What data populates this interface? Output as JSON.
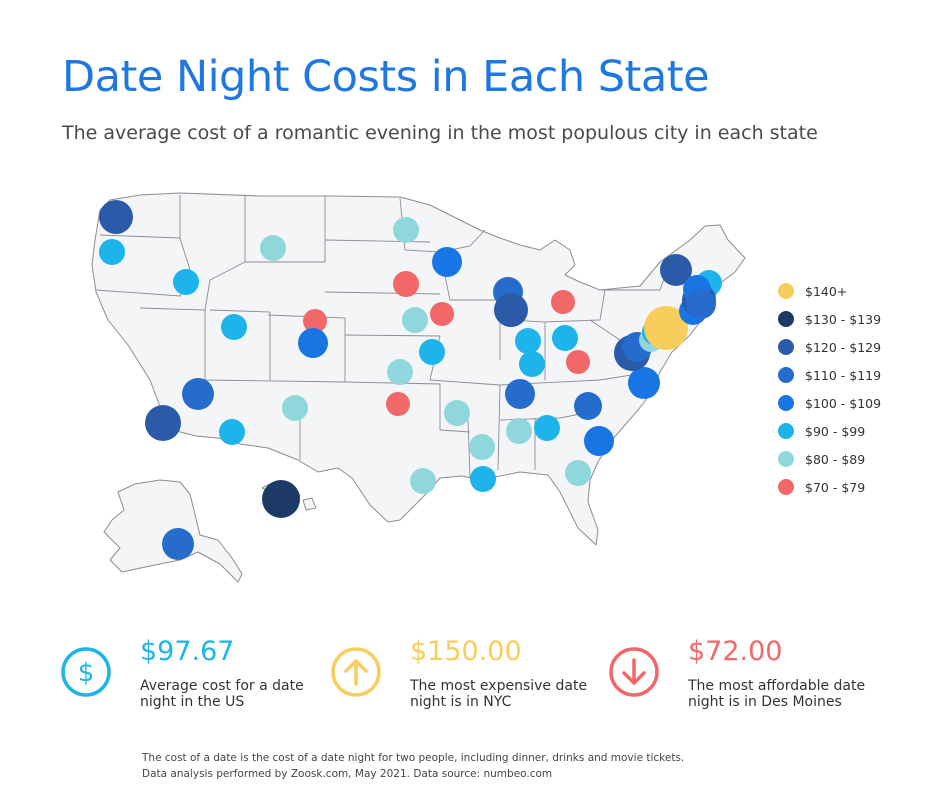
{
  "header": {
    "title": "Date Night Costs in Each State",
    "subtitle": "The average cost of a romantic evening in the most populous city in each state"
  },
  "legend": [
    {
      "label": "$140+",
      "color": "#f7cd5b"
    },
    {
      "label": "$130 - $139",
      "color": "#1d3a66"
    },
    {
      "label": "$120 - $129",
      "color": "#2b5ba8"
    },
    {
      "label": "$110 - $119",
      "color": "#256ccc"
    },
    {
      "label": "$100 - $109",
      "color": "#1876e4"
    },
    {
      "label": "$90 - $99",
      "color": "#1cb4ea"
    },
    {
      "label": "$80 - $89",
      "color": "#8fd7dc"
    },
    {
      "label": "$70 - $79",
      "color": "#f26767"
    }
  ],
  "stats": [
    {
      "value": "$97.67",
      "description": "Average cost for a date night in the US",
      "color": "#1cb4ea",
      "icon": "dollar-icon"
    },
    {
      "value": "$150.00",
      "description": "The most expensive date night is in NYC",
      "color": "#f7cd5b",
      "icon": "arrow-up-icon"
    },
    {
      "value": "$72.00",
      "description": "The most affordable date night is in Des Moines",
      "color": "#f26767",
      "icon": "arrow-down-icon"
    }
  ],
  "footnote": {
    "line1": "The cost of a date is the cost of a date night for two people, including dinner, drinks and movie tickets.",
    "line2": "Data analysis performed by Zoosk.com, May 2021. Data source: numbeo.com"
  },
  "map_points": [
    {
      "name": "seattle",
      "tier": 2
    },
    {
      "name": "portland",
      "tier": 5
    },
    {
      "name": "boise",
      "tier": 5
    },
    {
      "name": "billings",
      "tier": 6
    },
    {
      "name": "salt-lake-city",
      "tier": 5
    },
    {
      "name": "cheyenne",
      "tier": 7
    },
    {
      "name": "denver",
      "tier": 4
    },
    {
      "name": "las-vegas",
      "tier": 3
    },
    {
      "name": "los-angeles",
      "tier": 2
    },
    {
      "name": "phoenix",
      "tier": 5
    },
    {
      "name": "albuquerque",
      "tier": 6
    },
    {
      "name": "anchorage",
      "tier": 3
    },
    {
      "name": "honolulu",
      "tier": 1
    },
    {
      "name": "fargo",
      "tier": 6
    },
    {
      "name": "sioux-falls",
      "tier": 7
    },
    {
      "name": "omaha",
      "tier": 6
    },
    {
      "name": "wichita",
      "tier": 6
    },
    {
      "name": "oklahoma-city",
      "tier": 7
    },
    {
      "name": "houston",
      "tier": 6
    },
    {
      "name": "minneapolis",
      "tier": 4
    },
    {
      "name": "des-moines",
      "tier": 7
    },
    {
      "name": "kansas-city",
      "tier": 5
    },
    {
      "name": "little-rock",
      "tier": 6
    },
    {
      "name": "jackson",
      "tier": 6
    },
    {
      "name": "new-orleans",
      "tier": 5
    },
    {
      "name": "milwaukee",
      "tier": 3
    },
    {
      "name": "chicago",
      "tier": 2
    },
    {
      "name": "indianapolis",
      "tier": 5
    },
    {
      "name": "louisville",
      "tier": 5
    },
    {
      "name": "nashville",
      "tier": 3
    },
    {
      "name": "birmingham",
      "tier": 6
    },
    {
      "name": "atlanta",
      "tier": 5
    },
    {
      "name": "jacksonville",
      "tier": 6
    },
    {
      "name": "detroit",
      "tier": 7
    },
    {
      "name": "columbus",
      "tier": 5
    },
    {
      "name": "charleston-wv",
      "tier": 7
    },
    {
      "name": "charlotte",
      "tier": 3
    },
    {
      "name": "charleston-sc",
      "tier": 4
    },
    {
      "name": "virginia-beach",
      "tier": 4
    },
    {
      "name": "baltimore",
      "tier": 2
    },
    {
      "name": "washington-dc",
      "tier": 3
    },
    {
      "name": "wilmington",
      "tier": 6
    },
    {
      "name": "philadelphia",
      "tier": 5
    },
    {
      "name": "new-york-city",
      "tier": 0
    },
    {
      "name": "newark",
      "tier": 4
    },
    {
      "name": "burlington",
      "tier": 2
    },
    {
      "name": "portland-me",
      "tier": 5
    },
    {
      "name": "boston",
      "tier": 2
    },
    {
      "name": "providence",
      "tier": 4
    },
    {
      "name": "bridgeport",
      "tier": 3
    }
  ]
}
